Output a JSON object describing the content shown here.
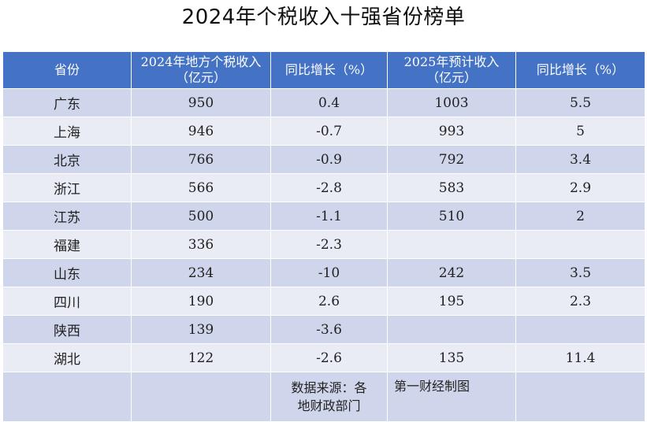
{
  "title": "2024年个税收入十强省份榜单",
  "headers": [
    {
      "line1": "省份",
      "line2": ""
    },
    {
      "line1": "2024年地方个税收入",
      "line2": "（亿元）"
    },
    {
      "line1": "同比增长（%）",
      "line2": ""
    },
    {
      "line1": "2025年预计收入",
      "line2": "（亿元）"
    },
    {
      "line1": "同比增长（%）",
      "line2": ""
    }
  ],
  "rows": [
    {
      "province": "广东",
      "income_2024": "950",
      "growth_2024": "0.4",
      "income_2025": "1003",
      "growth_2025": "5.5"
    },
    {
      "province": "上海",
      "income_2024": "946",
      "growth_2024": "-0.7",
      "income_2025": "993",
      "growth_2025": "5"
    },
    {
      "province": "北京",
      "income_2024": "766",
      "growth_2024": "-0.9",
      "income_2025": "792",
      "growth_2025": "3.4"
    },
    {
      "province": "浙江",
      "income_2024": "566",
      "growth_2024": "-2.8",
      "income_2025": "583",
      "growth_2025": "2.9"
    },
    {
      "province": "江苏",
      "income_2024": "500",
      "growth_2024": "-1.1",
      "income_2025": "510",
      "growth_2025": "2"
    },
    {
      "province": "福建",
      "income_2024": "336",
      "growth_2024": "-2.3",
      "income_2025": "",
      "growth_2025": ""
    },
    {
      "province": "山东",
      "income_2024": "234",
      "growth_2024": "-10",
      "income_2025": "242",
      "growth_2025": "3.5"
    },
    {
      "province": "四川",
      "income_2024": "190",
      "growth_2024": "2.6",
      "income_2025": "195",
      "growth_2025": "2.3"
    },
    {
      "province": "陕西",
      "income_2024": "139",
      "growth_2024": "-3.6",
      "income_2025": "",
      "growth_2025": ""
    },
    {
      "province": "湖北",
      "income_2024": "122",
      "growth_2024": "-2.6",
      "income_2025": "135",
      "growth_2025": "11.4"
    }
  ],
  "footer": {
    "source_line1": "数据来源：各",
    "source_line2": "地财政部门",
    "credit": "第一财经制图"
  }
}
